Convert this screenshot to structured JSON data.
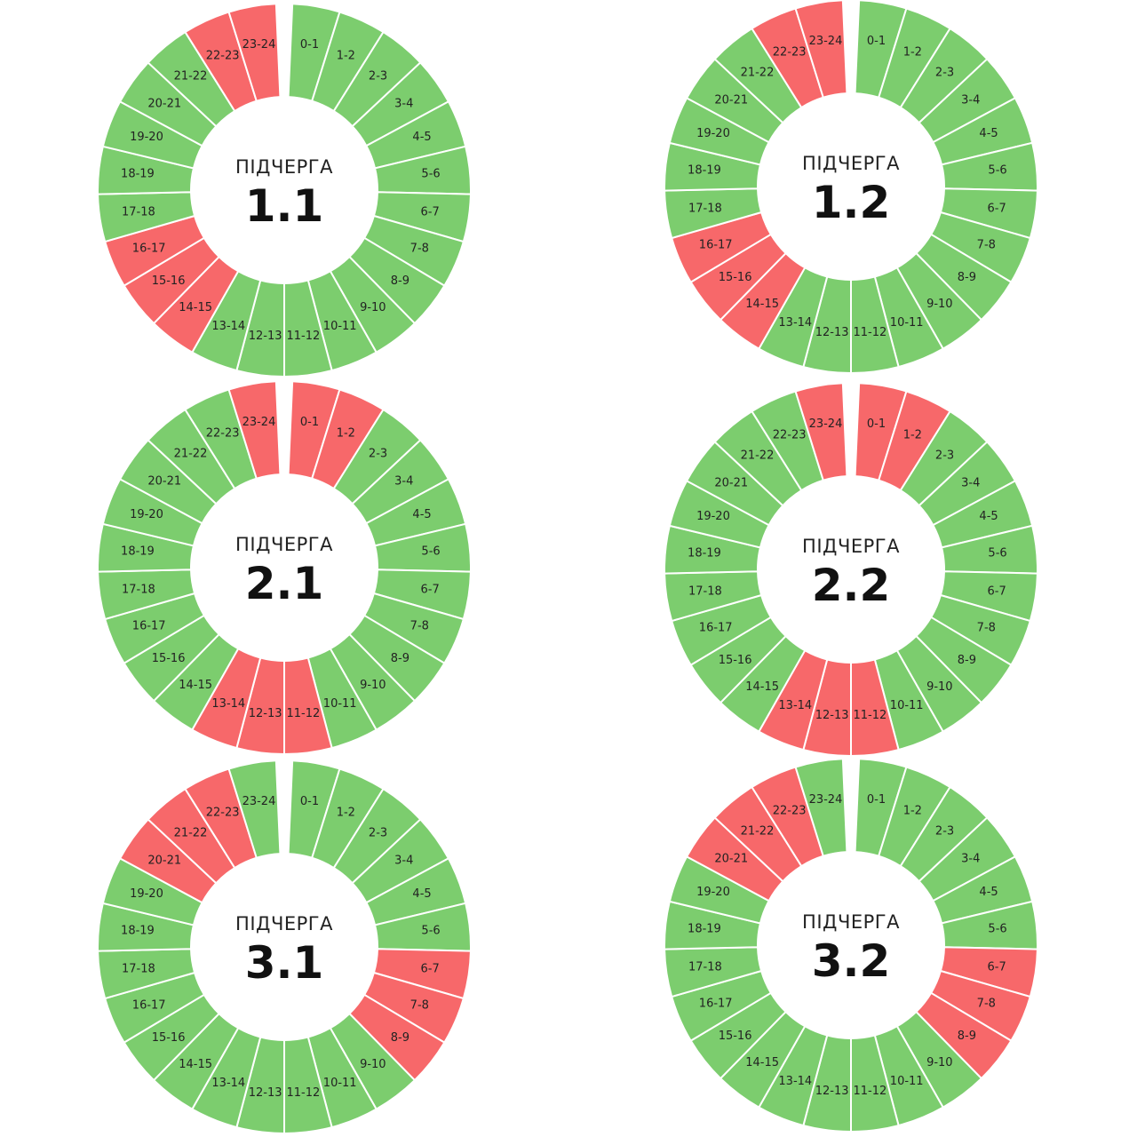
{
  "colors": {
    "on": "#7ccd6e",
    "off": "#f7686a",
    "separator": "#ffffff"
  },
  "hours": [
    "0-1",
    "1-2",
    "2-3",
    "3-4",
    "4-5",
    "5-6",
    "6-7",
    "7-8",
    "8-9",
    "9-10",
    "10-11",
    "11-12",
    "12-13",
    "13-14",
    "14-15",
    "15-16",
    "16-17",
    "17-18",
    "18-19",
    "19-20",
    "20-21",
    "21-22",
    "22-23",
    "23-24"
  ],
  "chart_data": [
    {
      "type": "pie",
      "caption": "ПІДЧЕРГА",
      "queue": "1.1",
      "outage_hours": [
        "14-15",
        "15-16",
        "16-17",
        "22-23",
        "23-24"
      ]
    },
    {
      "type": "pie",
      "caption": "ПІДЧЕРГА",
      "queue": "1.2",
      "outage_hours": [
        "14-15",
        "15-16",
        "16-17",
        "22-23",
        "23-24"
      ]
    },
    {
      "type": "pie",
      "caption": "ПІДЧЕРГА",
      "queue": "2.1",
      "outage_hours": [
        "0-1",
        "1-2",
        "11-12",
        "12-13",
        "13-14",
        "23-24"
      ]
    },
    {
      "type": "pie",
      "caption": "ПІДЧЕРГА",
      "queue": "2.2",
      "outage_hours": [
        "0-1",
        "1-2",
        "11-12",
        "12-13",
        "13-14",
        "23-24"
      ]
    },
    {
      "type": "pie",
      "caption": "ПІДЧЕРГА",
      "queue": "3.1",
      "outage_hours": [
        "6-7",
        "7-8",
        "8-9",
        "20-21",
        "21-22",
        "22-23"
      ]
    },
    {
      "type": "pie",
      "caption": "ПІДЧЕРГА",
      "queue": "3.2",
      "outage_hours": [
        "6-7",
        "7-8",
        "8-9",
        "20-21",
        "21-22",
        "22-23"
      ]
    }
  ]
}
